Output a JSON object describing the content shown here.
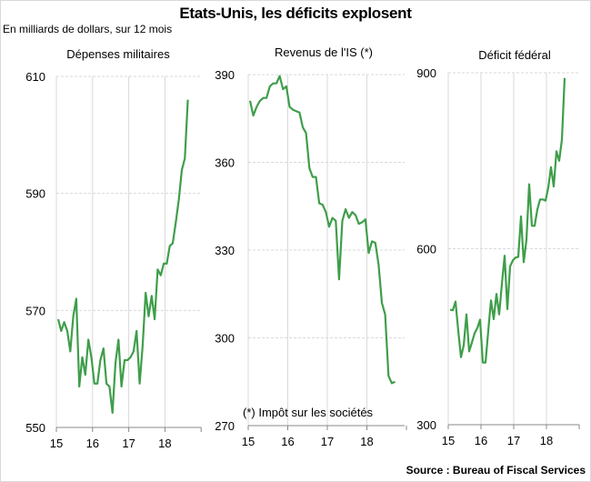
{
  "header": {
    "title": "Etats-Unis, les déficits explosent",
    "subtitle": "En milliards de dollars, sur 12 mois",
    "source": "Source : Bureau of Fiscal Services"
  },
  "colors": {
    "line": "#3f9e4a",
    "grid": "#d9d9d9",
    "axis": "#888888"
  },
  "chart_data": [
    {
      "type": "line",
      "title": "Dépenses militaires",
      "xlabel": "",
      "ylabel": "",
      "x_ticks": [
        "15",
        "16",
        "17",
        "18"
      ],
      "y_ticks": [
        "550",
        "570",
        "590",
        "610"
      ],
      "ylim": [
        550,
        610
      ],
      "x_start": 2015.0,
      "x_step_months": 1,
      "values": [
        568.5,
        566.5,
        568,
        566.5,
        563,
        569,
        572,
        557,
        562,
        559,
        565,
        562,
        557.5,
        557.5,
        561.5,
        563.5,
        557.5,
        557,
        552.5,
        561,
        565,
        557,
        561.5,
        561.5,
        562,
        563,
        566.5,
        557.5,
        564,
        573,
        569,
        572.5,
        568.5,
        577,
        576,
        578,
        578,
        581,
        581.5,
        585,
        589,
        594,
        596,
        606
      ]
    },
    {
      "type": "line",
      "title": "Revenus de l'IS (*)",
      "note": "(*) Impôt sur les sociétés",
      "x_ticks": [
        "15",
        "16",
        "17",
        "18"
      ],
      "y_ticks": [
        "270",
        "300",
        "330",
        "360",
        "390"
      ],
      "ylim": [
        270,
        390
      ],
      "x_start": 2015.0,
      "x_step_months": 1,
      "values": [
        381,
        376,
        379,
        381,
        382,
        382,
        386,
        387,
        387,
        389.5,
        385,
        386,
        379,
        378,
        377.5,
        377,
        372,
        370,
        358,
        355,
        355,
        346,
        345.5,
        343,
        338,
        341,
        340,
        320,
        340,
        344,
        341,
        343,
        342,
        339,
        339.5,
        340.5,
        329,
        333,
        332.5,
        325,
        312,
        308,
        287,
        284.5,
        285
      ]
    },
    {
      "type": "line",
      "title": "Déficit fédéral",
      "x_ticks": [
        "15",
        "16",
        "17",
        "18"
      ],
      "y_ticks": [
        "300",
        "600",
        "900"
      ],
      "ylim": [
        300,
        900
      ],
      "x_start": 2015.0,
      "x_step_months": 1,
      "values": [
        496,
        495,
        510,
        460,
        415,
        435,
        488,
        425,
        440,
        456,
        465,
        479,
        406,
        406,
        460,
        512,
        480,
        523,
        488,
        540,
        588,
        497,
        570,
        580,
        585,
        586,
        655,
        577,
        615,
        710,
        639,
        639,
        667,
        684,
        684,
        682,
        704,
        739,
        706,
        766,
        750,
        786,
        891
      ]
    }
  ]
}
